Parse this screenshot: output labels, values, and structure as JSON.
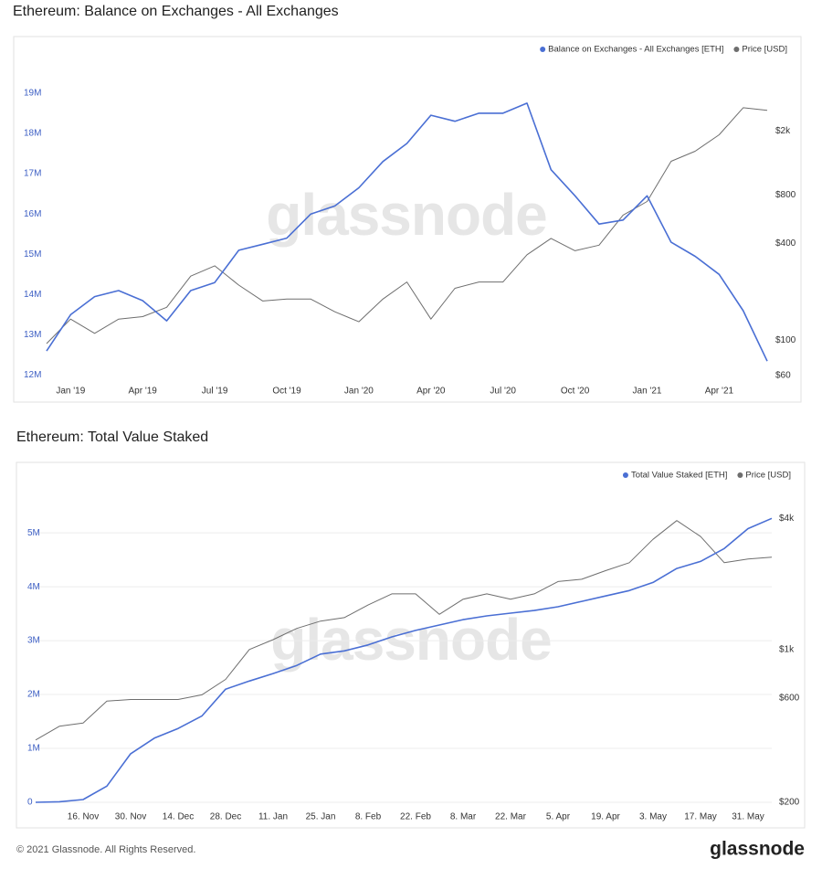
{
  "chart_data": [
    {
      "type": "line",
      "title": "Ethereum: Balance on Exchanges - All Exchanges",
      "watermark": "glassnode",
      "categories": [
        null,
        "Jan '19",
        null,
        null,
        "Apr '19",
        null,
        null,
        "Jul '19",
        null,
        null,
        "Oct '19",
        null,
        null,
        "Jan '20",
        null,
        null,
        "Apr '20",
        null,
        null,
        "Jul '20",
        null,
        null,
        "Oct '20",
        null,
        null,
        "Jan '21",
        null,
        null,
        "Apr '21",
        null,
        null
      ],
      "series": [
        {
          "name": "Balance on Exchanges - All Exchanges [ETH]",
          "color": "#4a6fd4",
          "axis": "y",
          "values": [
            12600000,
            13500000,
            13950000,
            14100000,
            13850000,
            13350000,
            14100000,
            14300000,
            15100000,
            15250000,
            15400000,
            16000000,
            16200000,
            16650000,
            17300000,
            17750000,
            18450000,
            18300000,
            18500000,
            18500000,
            18750000,
            17100000,
            16450000,
            15750000,
            15850000,
            16450000,
            15300000,
            14950000,
            14500000,
            13600000,
            12350000
          ]
        },
        {
          "name": "Price [USD]",
          "color": "#6e6e6e",
          "axis": "y2",
          "values": [
            95,
            135,
            110,
            135,
            140,
            160,
            250,
            290,
            220,
            175,
            180,
            180,
            150,
            130,
            180,
            230,
            135,
            210,
            230,
            230,
            340,
            430,
            360,
            390,
            600,
            730,
            1300,
            1500,
            1900,
            2800,
            2700
          ]
        }
      ],
      "ylim": [
        11900000,
        19700000
      ],
      "yticks": [
        {
          "value": 12000000,
          "label": "12M"
        },
        {
          "value": 13000000,
          "label": "13M"
        },
        {
          "value": 14000000,
          "label": "14M"
        },
        {
          "value": 15000000,
          "label": "15M"
        },
        {
          "value": 16000000,
          "label": "16M"
        },
        {
          "value": 17000000,
          "label": "17M"
        },
        {
          "value": 18000000,
          "label": "18M"
        },
        {
          "value": 19000000,
          "label": "19M"
        }
      ],
      "y2lim": [
        57,
        5180
      ],
      "y2log": true,
      "y2ticks": [
        {
          "value": 60,
          "label": "$60"
        },
        {
          "value": 100,
          "label": "$100"
        },
        {
          "value": 400,
          "label": "$400"
        },
        {
          "value": 800,
          "label": "$800"
        },
        {
          "value": 2000,
          "label": "$2k"
        }
      ],
      "grid": false,
      "legend": "top-right"
    },
    {
      "type": "line",
      "title": "Ethereum: Total Value Staked",
      "watermark": "glassnode",
      "categories": [
        null,
        null,
        "16. Nov",
        null,
        "30. Nov",
        null,
        "14. Dec",
        null,
        "28. Dec",
        null,
        "11. Jan",
        null,
        "25. Jan",
        null,
        "8. Feb",
        null,
        "22. Feb",
        null,
        "8. Mar",
        null,
        "22. Mar",
        null,
        "5. Apr",
        null,
        "19. Apr",
        null,
        "3. May",
        null,
        "17. May",
        null,
        "31. May",
        null
      ],
      "series": [
        {
          "name": "Total Value Staked [ETH]",
          "color": "#4a6fd4",
          "axis": "y",
          "values": [
            0,
            10000,
            50000,
            300000,
            900000,
            1190000,
            1370000,
            1600000,
            2100000,
            2250000,
            2390000,
            2540000,
            2750000,
            2810000,
            2920000,
            3070000,
            3190000,
            3290000,
            3390000,
            3460000,
            3510000,
            3560000,
            3630000,
            3730000,
            3830000,
            3930000,
            4080000,
            4340000,
            4470000,
            4710000,
            5080000,
            5270000
          ]
        },
        {
          "name": "Price [USD]",
          "color": "#6e6e6e",
          "axis": "y2",
          "values": [
            385,
            445,
            460,
            580,
            590,
            590,
            590,
            620,
            730,
            1000,
            1110,
            1250,
            1350,
            1400,
            1600,
            1800,
            1800,
            1450,
            1700,
            1800,
            1700,
            1800,
            2050,
            2100,
            2300,
            2500,
            3200,
            3900,
            3300,
            2500,
            2600,
            2650
          ]
        }
      ],
      "ylim": [
        -85000,
        5800000
      ],
      "yticks": [
        0,
        {
          "value": 1000000,
          "label": "1M"
        },
        {
          "value": 2000000,
          "label": "2M"
        },
        {
          "value": 3000000,
          "label": "3M"
        },
        {
          "value": 4000000,
          "label": "4M"
        },
        {
          "value": 5000000,
          "label": "5M"
        }
      ],
      "y2lim": [
        190,
        5400
      ],
      "y2log": true,
      "y2ticks": [
        {
          "value": 200,
          "label": "$200"
        },
        {
          "value": 600,
          "label": "$600"
        },
        {
          "value": 1000,
          "label": "$1k"
        },
        {
          "value": 4000,
          "label": "$4k"
        }
      ],
      "grid": true,
      "legend": "top-right"
    }
  ],
  "footer": {
    "copyright": "© 2021 Glassnode. All Rights Reserved.",
    "logo": "glassnode"
  }
}
